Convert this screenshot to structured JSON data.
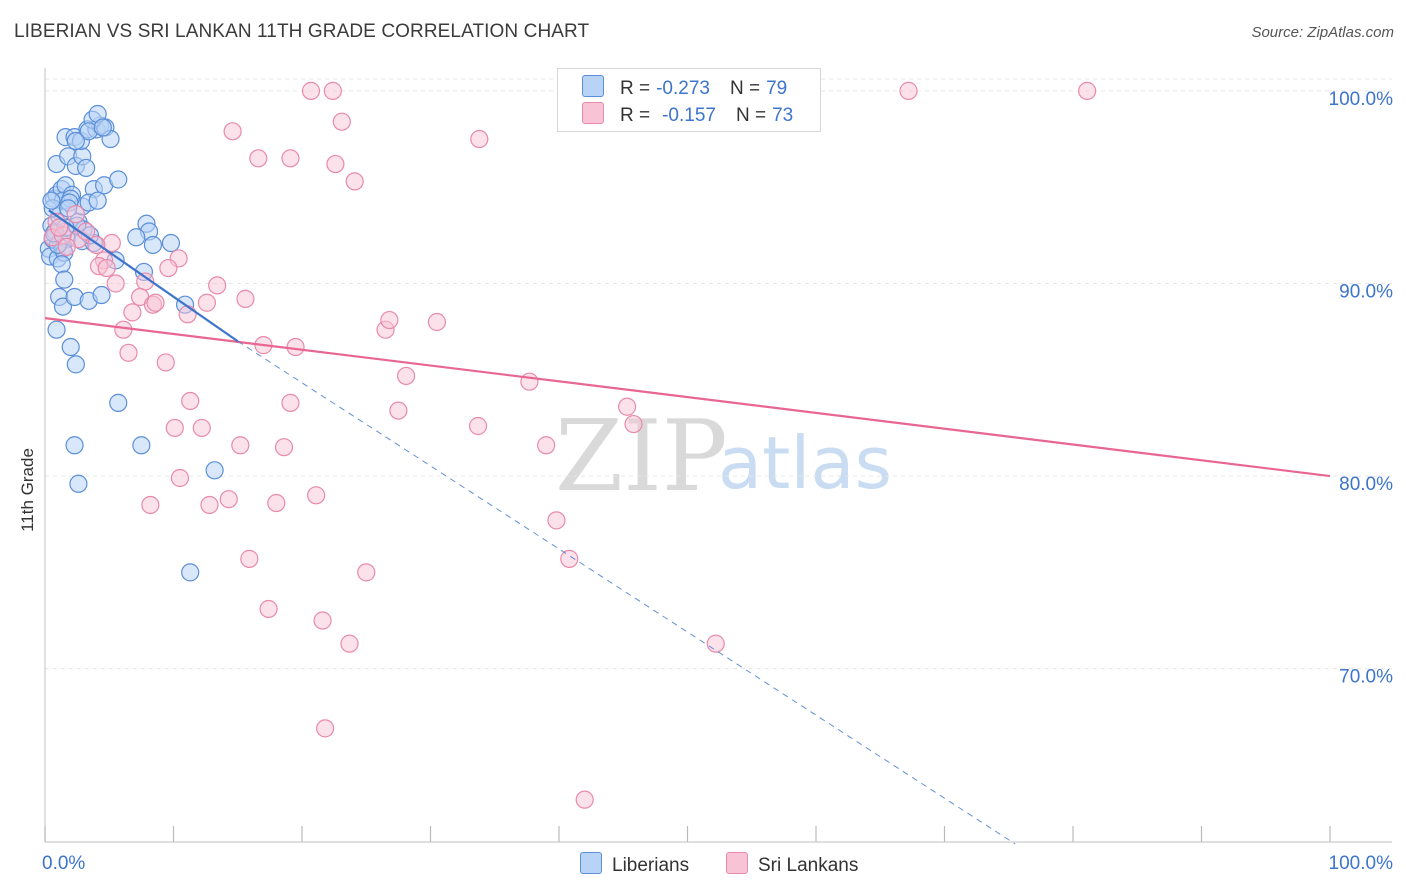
{
  "title": "LIBERIAN VS SRI LANKAN 11TH GRADE CORRELATION CHART",
  "source": "Source: ZipAtlas.com",
  "colors": {
    "blue": "#3d74cc",
    "blue_fill": "#b8d3f5",
    "blue_stroke": "#5b8fd8",
    "pink": "#e8668f",
    "pink_fill": "#f8c4d5",
    "pink_stroke": "#e98aab",
    "tick_label": "#3d74cc"
  },
  "legend": {
    "liberian": {
      "r_label": "R =",
      "r_value": "-0.273",
      "n_label": "N =",
      "n_value": "79"
    },
    "srilankan": {
      "r_label": "R =",
      "r_value": "-0.157",
      "n_label": "N =",
      "n_value": "73"
    }
  },
  "bottom_legend": {
    "liberians": "Liberians",
    "srilankans": "Sri Lankans"
  },
  "watermark": {
    "zip": "ZIP",
    "atlas": "atlas"
  },
  "chart_data": {
    "type": "scatter",
    "title": "LIBERIAN VS SRI LANKAN 11TH GRADE CORRELATION CHART",
    "xlabel": "",
    "ylabel": "11th Grade",
    "xlim": [
      0,
      100
    ],
    "ylim": [
      61,
      101.5
    ],
    "x_tick_labels": {
      "left": "0.0%",
      "right": "100.0%"
    },
    "y_ticks": [
      {
        "value": 100,
        "label": "100.0%"
      },
      {
        "value": 90,
        "label": "90.0%"
      },
      {
        "value": 80,
        "label": "80.0%"
      },
      {
        "value": 70,
        "label": "70.0%"
      }
    ],
    "grid": true,
    "series": [
      {
        "name": "Liberians",
        "r": -0.273,
        "n": 79,
        "trend": {
          "x0": 0.3,
          "y0": 93.8,
          "x1": 15.0,
          "y1": 87.0,
          "dash_x1": 75.5,
          "dash_y1": 60.9
        },
        "points": [
          [
            0.3,
            91.8
          ],
          [
            0.5,
            93.0
          ],
          [
            0.4,
            91.4
          ],
          [
            0.6,
            92.3
          ],
          [
            0.8,
            92.7
          ],
          [
            1.0,
            91.3
          ],
          [
            1.1,
            93.5
          ],
          [
            0.7,
            94.4
          ],
          [
            0.9,
            94.6
          ],
          [
            1.3,
            94.9
          ],
          [
            1.6,
            95.1
          ],
          [
            1.4,
            94.3
          ],
          [
            0.9,
            96.2
          ],
          [
            1.8,
            96.6
          ],
          [
            2.4,
            96.1
          ],
          [
            2.9,
            96.6
          ],
          [
            1.6,
            97.6
          ],
          [
            2.3,
            97.6
          ],
          [
            2.8,
            97.4
          ],
          [
            3.3,
            98.0
          ],
          [
            4.0,
            98.0
          ],
          [
            4.3,
            98.2
          ],
          [
            4.7,
            98.1
          ],
          [
            5.1,
            97.5
          ],
          [
            3.7,
            98.5
          ],
          [
            4.1,
            98.8
          ],
          [
            3.4,
            97.9
          ],
          [
            1.2,
            92.2
          ],
          [
            1.4,
            91.8
          ],
          [
            1.7,
            92.3
          ],
          [
            2.6,
            93.2
          ],
          [
            3.0,
            92.8
          ],
          [
            2.1,
            94.6
          ],
          [
            2.9,
            94.0
          ],
          [
            3.8,
            94.9
          ],
          [
            4.6,
            95.1
          ],
          [
            5.7,
            95.4
          ],
          [
            3.4,
            94.2
          ],
          [
            4.1,
            94.3
          ],
          [
            2.0,
            94.4
          ],
          [
            1.5,
            91.6
          ],
          [
            1.3,
            91.0
          ],
          [
            2.5,
            93.0
          ],
          [
            2.9,
            92.2
          ],
          [
            3.8,
            92.1
          ],
          [
            5.5,
            91.2
          ],
          [
            7.9,
            93.1
          ],
          [
            8.1,
            92.7
          ],
          [
            8.4,
            92.0
          ],
          [
            9.8,
            92.1
          ],
          [
            7.1,
            92.4
          ],
          [
            7.7,
            90.6
          ],
          [
            1.5,
            90.2
          ],
          [
            1.1,
            89.3
          ],
          [
            1.4,
            88.8
          ],
          [
            2.3,
            89.3
          ],
          [
            3.4,
            89.1
          ],
          [
            4.4,
            89.4
          ],
          [
            10.9,
            88.9
          ],
          [
            0.9,
            87.6
          ],
          [
            2.0,
            86.7
          ],
          [
            2.4,
            85.8
          ],
          [
            5.7,
            83.8
          ],
          [
            2.3,
            81.6
          ],
          [
            7.5,
            81.6
          ],
          [
            2.6,
            79.6
          ],
          [
            13.2,
            80.3
          ],
          [
            11.3,
            75.0
          ],
          [
            0.6,
            93.9
          ],
          [
            1.9,
            94.2
          ],
          [
            4.5,
            98.1
          ],
          [
            2.4,
            97.4
          ],
          [
            3.2,
            96.0
          ],
          [
            1.0,
            92.0
          ],
          [
            1.8,
            93.9
          ],
          [
            0.7,
            92.6
          ],
          [
            0.5,
            94.3
          ],
          [
            3.5,
            92.5
          ],
          [
            1.6,
            92.9
          ]
        ]
      },
      {
        "name": "Sri Lankans",
        "r": -0.157,
        "n": 73,
        "trend": {
          "x0": 0.0,
          "y0": 88.2,
          "x1": 100.0,
          "y1": 80.0
        },
        "points": [
          [
            20.7,
            100.0
          ],
          [
            22.4,
            100.0
          ],
          [
            67.2,
            100.0
          ],
          [
            81.1,
            100.0
          ],
          [
            23.1,
            98.4
          ],
          [
            33.8,
            97.5
          ],
          [
            14.6,
            97.9
          ],
          [
            16.6,
            96.5
          ],
          [
            19.1,
            96.5
          ],
          [
            22.6,
            96.2
          ],
          [
            24.1,
            95.3
          ],
          [
            0.6,
            92.4
          ],
          [
            0.9,
            93.2
          ],
          [
            1.4,
            92.5
          ],
          [
            1.1,
            92.9
          ],
          [
            2.6,
            92.3
          ],
          [
            3.2,
            92.7
          ],
          [
            2.4,
            93.6
          ],
          [
            5.2,
            92.1
          ],
          [
            4.6,
            91.2
          ],
          [
            4.2,
            90.9
          ],
          [
            4.8,
            90.8
          ],
          [
            5.5,
            90.0
          ],
          [
            7.8,
            90.1
          ],
          [
            10.4,
            91.3
          ],
          [
            9.6,
            90.8
          ],
          [
            13.4,
            89.9
          ],
          [
            7.4,
            89.3
          ],
          [
            8.4,
            88.9
          ],
          [
            8.6,
            89.0
          ],
          [
            11.1,
            88.4
          ],
          [
            12.6,
            89.0
          ],
          [
            15.6,
            89.2
          ],
          [
            6.8,
            88.5
          ],
          [
            6.1,
            87.6
          ],
          [
            26.5,
            87.6
          ],
          [
            26.8,
            88.1
          ],
          [
            30.5,
            88.0
          ],
          [
            17.0,
            86.8
          ],
          [
            19.5,
            86.7
          ],
          [
            6.5,
            86.4
          ],
          [
            9.4,
            85.9
          ],
          [
            28.1,
            85.2
          ],
          [
            37.7,
            84.9
          ],
          [
            11.3,
            83.9
          ],
          [
            19.1,
            83.8
          ],
          [
            27.5,
            83.4
          ],
          [
            45.3,
            83.6
          ],
          [
            45.8,
            82.7
          ],
          [
            33.7,
            82.6
          ],
          [
            10.1,
            82.5
          ],
          [
            12.2,
            82.5
          ],
          [
            15.2,
            81.6
          ],
          [
            18.6,
            81.5
          ],
          [
            39.0,
            81.6
          ],
          [
            10.5,
            79.9
          ],
          [
            21.1,
            79.0
          ],
          [
            14.3,
            78.8
          ],
          [
            8.2,
            78.5
          ],
          [
            12.8,
            78.5
          ],
          [
            18.0,
            78.6
          ],
          [
            39.8,
            77.7
          ],
          [
            40.8,
            75.7
          ],
          [
            15.9,
            75.7
          ],
          [
            25.0,
            75.0
          ],
          [
            17.4,
            73.1
          ],
          [
            21.6,
            72.5
          ],
          [
            23.7,
            71.3
          ],
          [
            52.2,
            71.3
          ],
          [
            21.8,
            66.9
          ],
          [
            42.0,
            63.2
          ],
          [
            4.0,
            92.0
          ],
          [
            1.7,
            91.9
          ]
        ]
      }
    ]
  }
}
